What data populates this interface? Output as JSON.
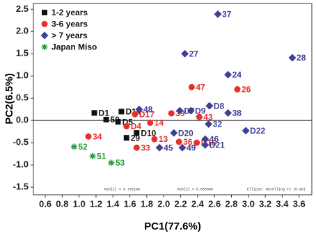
{
  "chart_data": {
    "type": "scatter",
    "x_label": "PC1(77.6%)",
    "y_label": "PC2(6.5%)",
    "xlim": [
      0.46,
      3.75
    ],
    "ylim": [
      -1.67,
      2.63
    ],
    "xticks": [
      0.6,
      0.8,
      {
        "value": 1.0,
        "label": "1.0"
      },
      1.2,
      1.4,
      1.6,
      1.8,
      {
        "value": 2.0,
        "label": "2.0"
      },
      2.2,
      2.4,
      2.6,
      2.8,
      {
        "value": 3.0,
        "label": "3.0"
      },
      3.2,
      3.4,
      3.6
    ],
    "yticks": [
      2.5,
      {
        "value": 2.0,
        "label": "2.0"
      },
      1.5,
      {
        "value": 1.0,
        "label": "1.0"
      },
      0.5,
      {
        "value": 0.0,
        "label": "0.0"
      },
      -0.5,
      {
        "value": -1.0,
        "label": "-1.0"
      },
      -1.5
    ],
    "legend": "upper left",
    "annotations": [
      "R2X[1] = 0.776104",
      "R2X[2] = 0.065586",
      "Ellipse: Hotelling T2 (0.95)"
    ],
    "series": [
      {
        "name": "1-2 years",
        "color": "#111111",
        "marker": "square",
        "x": [
          1.18,
          1.5,
          1.32,
          1.46,
          1.68,
          1.56
        ],
        "y": [
          0.17,
          0.2,
          0.02,
          -0.03,
          -0.28,
          -0.39
        ],
        "labels": [
          "D1",
          "D14",
          "50",
          "D5",
          "D10",
          "29"
        ]
      },
      {
        "name": "3-6 years",
        "color": "#e8302a",
        "marker": "circle",
        "x": [
          1.11,
          1.56,
          1.66,
          1.84,
          2.09,
          2.33,
          2.87,
          2.42,
          1.68,
          1.89,
          2.18,
          2.39
        ],
        "y": [
          -0.36,
          -0.13,
          0.14,
          -0.05,
          0.16,
          0.75,
          0.7,
          0.08,
          -0.61,
          -0.42,
          -0.48,
          -0.5
        ],
        "labels": [
          "34",
          "D4",
          "D17",
          "14",
          "39",
          "47",
          "26",
          "43",
          "33",
          "13",
          "36",
          "D16"
        ]
      },
      {
        "name": "> 7 years",
        "color": "#3f3f98",
        "marker": "diamond",
        "x": [
          2.64,
          3.52,
          2.25,
          2.76,
          2.54,
          2.19,
          2.32,
          1.71,
          2.76,
          2.97,
          2.53,
          2.12,
          2.49,
          2.49,
          2.22,
          1.95
        ],
        "y": [
          2.39,
          1.41,
          1.5,
          1.03,
          0.33,
          0.22,
          0.22,
          0.25,
          0.17,
          -0.23,
          -0.08,
          -0.28,
          -0.42,
          -0.55,
          -0.61,
          -0.61
        ],
        "labels": [
          "37",
          "28",
          "27",
          "24",
          "D8",
          "D7",
          "D9",
          "48",
          "38",
          "D22",
          "32",
          "D20",
          "46",
          "D21",
          "49",
          "45"
        ]
      },
      {
        "name": "Japan Miso",
        "color": "#2e9a3e",
        "marker": "asterisk",
        "x": [
          0.94,
          1.16,
          1.38
        ],
        "y": [
          -0.59,
          -0.8,
          -0.95
        ],
        "labels": [
          "52",
          "51",
          "53"
        ]
      }
    ]
  }
}
